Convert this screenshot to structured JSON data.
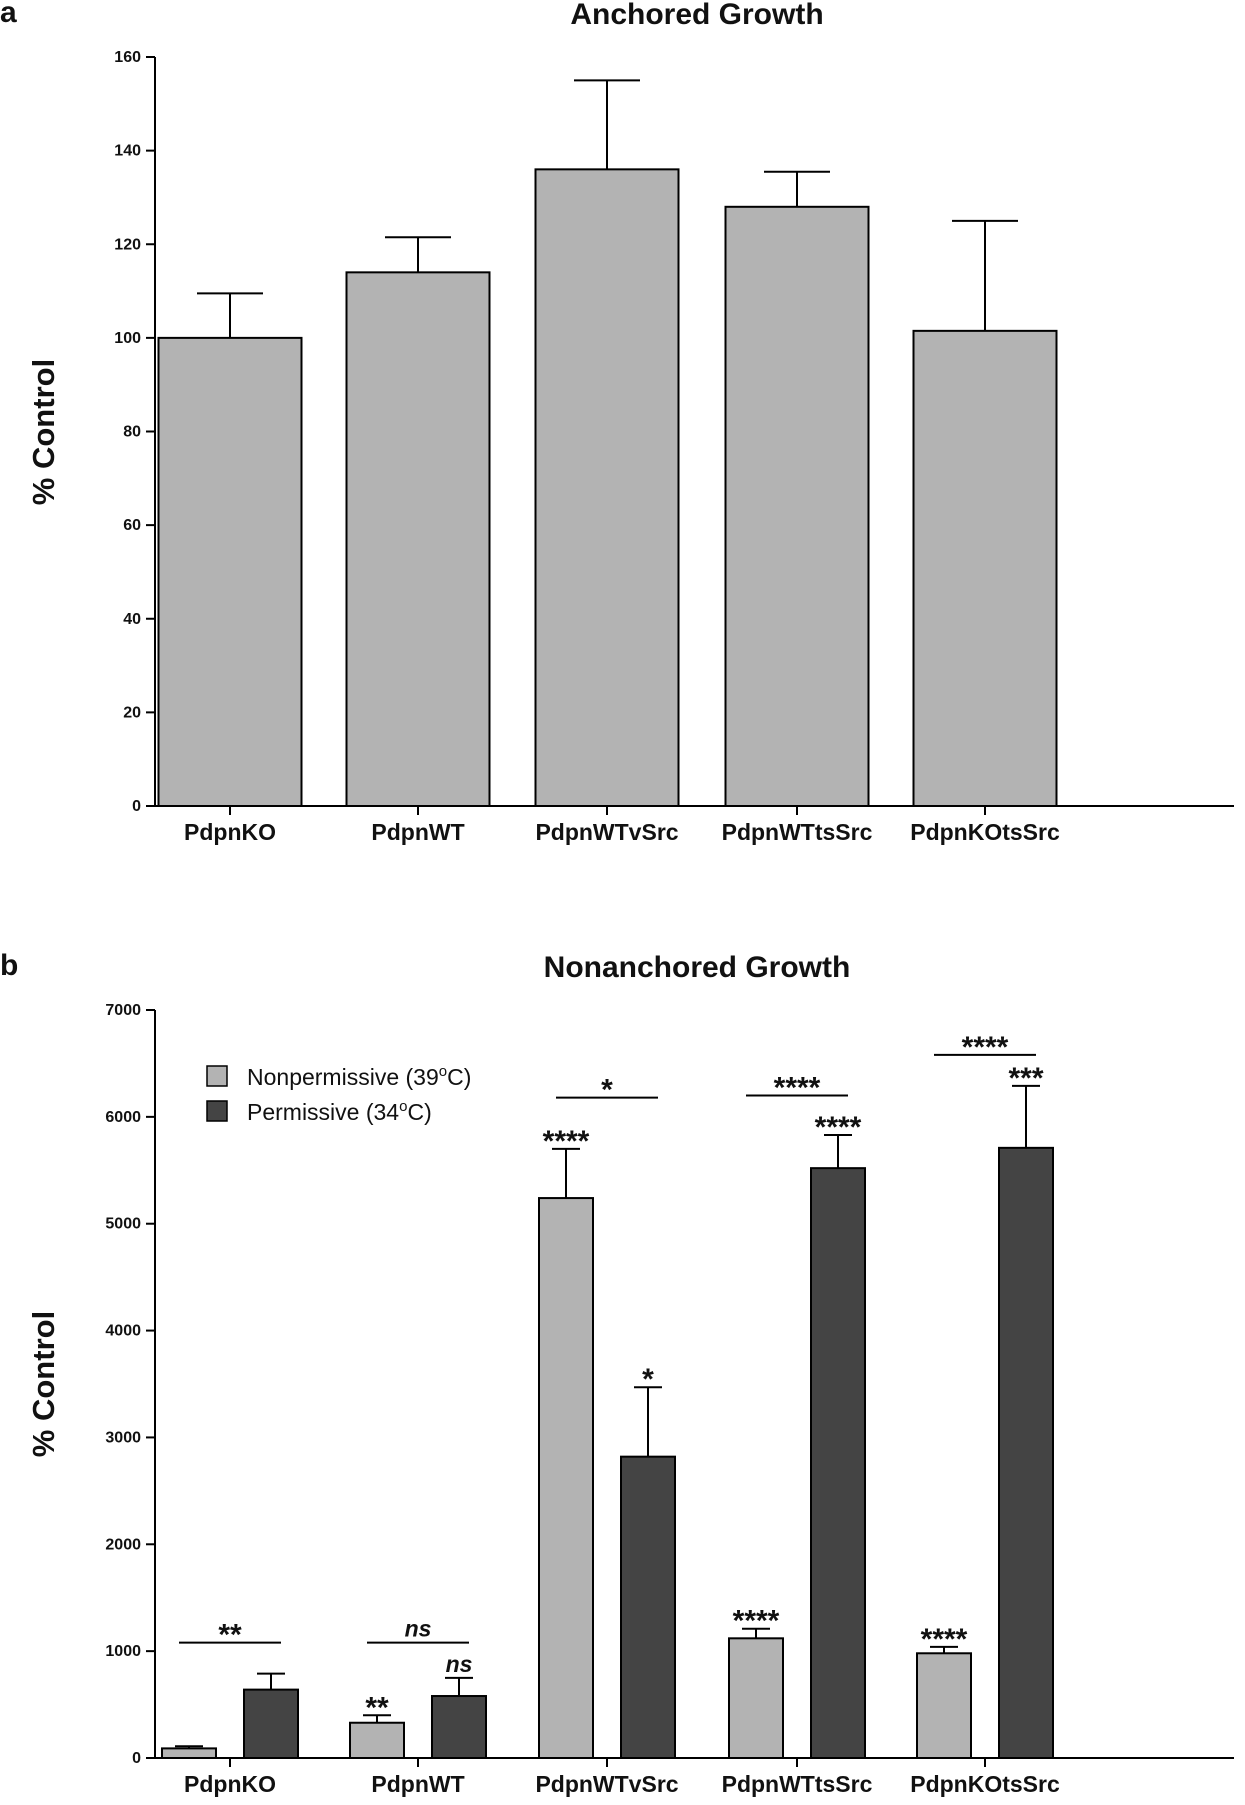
{
  "chart_data": [
    {
      "panel": "a",
      "type": "bar",
      "title": "Anchored Growth",
      "xlabel": "",
      "ylabel": "% Control",
      "ylim": [
        0,
        160
      ],
      "yticks": [
        0,
        20,
        40,
        60,
        80,
        100,
        120,
        140,
        160
      ],
      "categories": [
        "PdpnKO",
        "PdpnWT",
        "PdpnWTvSrc",
        "PdpnWTtsSrc",
        "PdpnKOtsSrc"
      ],
      "values": [
        100,
        114,
        136,
        128,
        101.5
      ],
      "errors": [
        9.5,
        7.5,
        19,
        7.5,
        23.5
      ],
      "bar_color": "#b3b3b3",
      "grid": false
    },
    {
      "panel": "b",
      "type": "bar",
      "title": "Nonanchored Growth",
      "xlabel": "",
      "ylabel": "% Control",
      "ylim": [
        0,
        7000
      ],
      "yticks": [
        0,
        1000,
        2000,
        3000,
        4000,
        5000,
        6000,
        7000
      ],
      "categories": [
        "PdpnKO",
        "PdpnWT",
        "PdpnWTvSrc",
        "PdpnWTtsSrc",
        "PdpnKOtsSrc"
      ],
      "series": [
        {
          "name": "Nonpermissive (39",
          "sup": "o",
          "suffix": "C)",
          "color": "#b3b3b3",
          "values": [
            90,
            330,
            5240,
            1120,
            980
          ],
          "errors": [
            20,
            70,
            460,
            90,
            60
          ]
        },
        {
          "name": "Permissive (34",
          "sup": "o",
          "suffix": "C)",
          "color": "#444444",
          "values": [
            640,
            580,
            2820,
            5520,
            5710
          ],
          "errors": [
            150,
            170,
            650,
            310,
            580
          ]
        }
      ],
      "bar_annotations": [
        {
          "category": 1,
          "series": 0,
          "text": "**"
        },
        {
          "category": 1,
          "series": 1,
          "text": "ns",
          "italic": true
        },
        {
          "category": 2,
          "series": 0,
          "text": "****"
        },
        {
          "category": 2,
          "series": 1,
          "text": "*"
        },
        {
          "category": 3,
          "series": 0,
          "text": "****"
        },
        {
          "category": 3,
          "series": 1,
          "text": "****"
        },
        {
          "category": 4,
          "series": 0,
          "text": "****"
        },
        {
          "category": 4,
          "series": 1,
          "text": "***"
        }
      ],
      "comparisons": [
        {
          "category": 0,
          "text": "**",
          "level": 1080
        },
        {
          "category": 1,
          "text": "ns",
          "italic": true,
          "level": 1080
        },
        {
          "category": 2,
          "text": "*",
          "level": 6180
        },
        {
          "category": 3,
          "text": "****",
          "level": 6200
        },
        {
          "category": 4,
          "text": "****",
          "level": 6580
        }
      ],
      "legend_position": "top-left",
      "grid": false
    }
  ]
}
